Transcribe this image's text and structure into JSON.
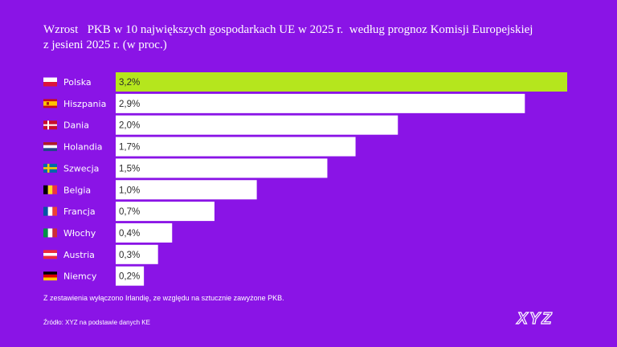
{
  "title": {
    "line1": "Wzrost   PKB w 10 największych gospodarkach UE w 2025 r.  według prognoz Komisji Europejskiej",
    "line2": "z jesieni 2025 r. (w proc.)"
  },
  "footnote": "Z zestawienia wyłączono Irlandię, ze względu na sztucznie zawyżone PKB.",
  "source": "Źródło: XYZ na podstawie danych KE",
  "logo": "XYZ",
  "colors": {
    "background": "#8a14e6",
    "highlight_bar": "#b5e61d",
    "bar": "#ffffff",
    "bar_text": "#2a2a2a"
  },
  "chart_data": {
    "type": "bar",
    "orientation": "horizontal",
    "categories": [
      "Polska",
      "Hiszpania",
      "Dania",
      "Holandia",
      "Szwecja",
      "Belgia",
      "Francja",
      "Włochy",
      "Austria",
      "Niemcy"
    ],
    "values": [
      3.2,
      2.9,
      2.0,
      1.7,
      1.5,
      1.0,
      0.7,
      0.4,
      0.3,
      0.2
    ],
    "value_labels": [
      "3,2%",
      "2,9%",
      "2,0%",
      "1,7%",
      "1,5%",
      "1,0%",
      "0,7%",
      "0,4%",
      "0,3%",
      "0,2%"
    ],
    "flags": [
      "flag-poland-icon",
      "flag-spain-icon",
      "flag-denmark-icon",
      "flag-netherlands-icon",
      "flag-sweden-icon",
      "flag-belgium-icon",
      "flag-france-icon",
      "flag-italy-icon",
      "flag-austria-icon",
      "flag-germany-icon"
    ],
    "highlight": "Polska",
    "xlim": [
      0,
      3.2
    ],
    "grid": false,
    "legend": "none"
  }
}
